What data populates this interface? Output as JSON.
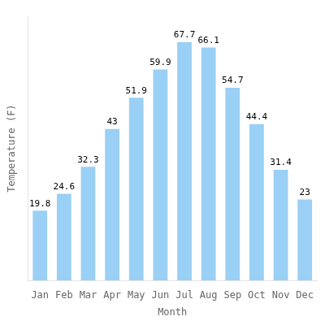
{
  "chart_data": {
    "type": "bar",
    "categories": [
      "Jan",
      "Feb",
      "Mar",
      "Apr",
      "May",
      "Jun",
      "Jul",
      "Aug",
      "Sep",
      "Oct",
      "Nov",
      "Dec"
    ],
    "values": [
      19.8,
      24.6,
      32.3,
      43.0,
      51.9,
      59.9,
      67.7,
      66.1,
      54.7,
      44.4,
      31.4,
      23.0
    ],
    "xlabel": "Month",
    "ylabel": "Temperature (F)",
    "ylim": [
      0,
      75
    ],
    "grid": false,
    "data_labels": true,
    "tick_labels": "x"
  }
}
